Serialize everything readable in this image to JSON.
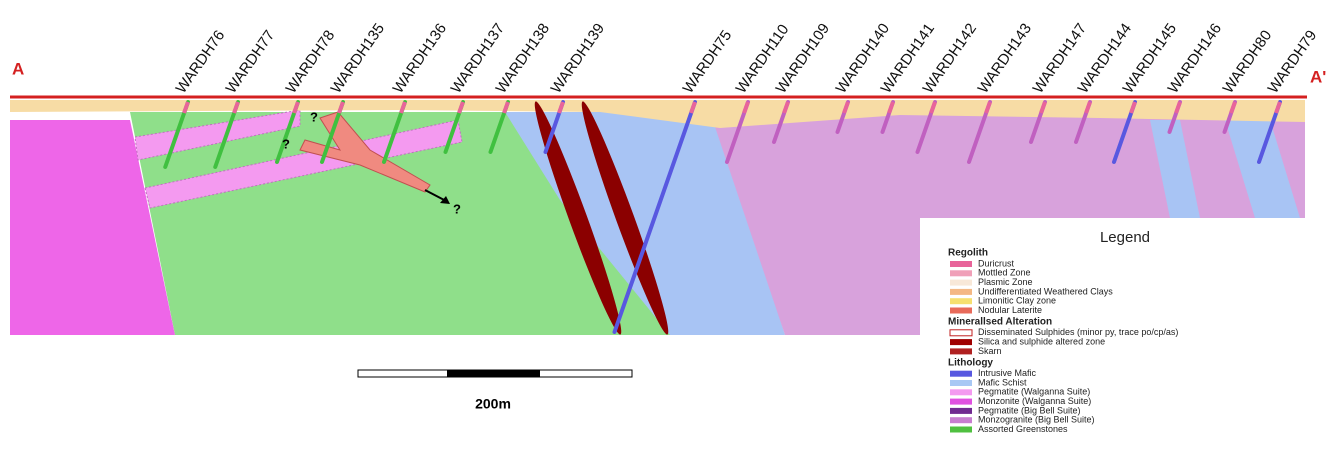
{
  "section_ends": {
    "start": "A",
    "end": "A'"
  },
  "drillholes": [
    "WARDH76",
    "WARDH77",
    "WARDH78",
    "WARDH135",
    "WARDH136",
    "WARDH137",
    "WARDH138",
    "WARDH139",
    "WARDH75",
    "WARDH110",
    "WARDH109",
    "WARDH140",
    "WARDH141",
    "WARDH142",
    "WARDH143",
    "WARDH147",
    "WARDH144",
    "WARDH145",
    "WARDH146",
    "WARDH80",
    "WARDH79"
  ],
  "unknowns": [
    "?",
    "?",
    "?"
  ],
  "scale_bar": {
    "label": "200m"
  },
  "legend": {
    "title": "Legend",
    "groups": [
      {
        "name": "Regolith",
        "items": [
          {
            "label": "Duricrust",
            "color": "#e8649a"
          },
          {
            "label": "Mottled Zone",
            "color": "#f0a0b8"
          },
          {
            "label": "Plasmic Zone",
            "color": "#f8e8d8"
          },
          {
            "label": "Undifferentiated Weathered Clays",
            "color": "#f4b884"
          },
          {
            "label": "Limonitic Clay zone",
            "color": "#f6e070"
          },
          {
            "label": "Nodular Laterite",
            "color": "#e86a5a"
          }
        ]
      },
      {
        "name": "Minerallsed Alteration",
        "items": [
          {
            "label": "Disseminated Sulphides (minor py, trace po/cp/as)",
            "color": "#ffffff"
          },
          {
            "label": "Silica and sulphide altered zone",
            "color": "#a00000"
          },
          {
            "label": "Skarn",
            "color": "#b02020"
          }
        ]
      },
      {
        "name": "Lithology",
        "items": [
          {
            "label": "Intrusive Mafic",
            "color": "#5858e0"
          },
          {
            "label": "Mafic Schist",
            "color": "#a8c8f4"
          },
          {
            "label": "Pegmatite (Walganna Suite)",
            "color": "#f49af0"
          },
          {
            "label": "Monzonite (Walganna Suite)",
            "color": "#e050e0"
          },
          {
            "label": "Pegmatite (Big Bell Suite)",
            "color": "#702a90"
          },
          {
            "label": "Monzogranite (Big Bell Suite)",
            "color": "#c87ed0"
          },
          {
            "label": "Assorted Greenstones",
            "color": "#50c040"
          }
        ]
      }
    ]
  }
}
